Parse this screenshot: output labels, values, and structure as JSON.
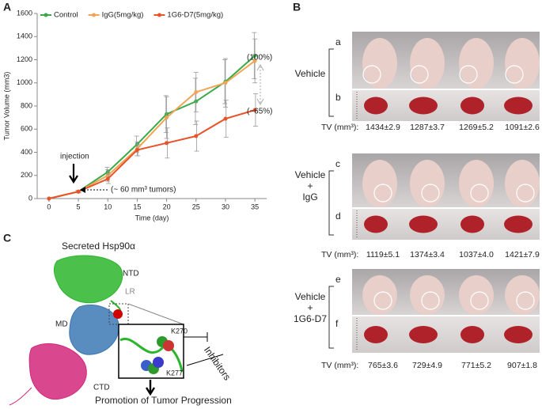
{
  "chart_data": {
    "type": "line",
    "panel_label": "A",
    "x_label": "Time (day)",
    "y_label": "Tumor Volume (mm3)",
    "x": [
      0,
      5,
      10,
      15,
      20,
      25,
      30,
      35
    ],
    "xlim": [
      -2,
      37
    ],
    "xticks": [
      0,
      5,
      10,
      15,
      20,
      25,
      30,
      35
    ],
    "ylim": [
      0,
      1600
    ],
    "yticks": [
      0,
      200,
      400,
      600,
      800,
      1000,
      1200,
      1400,
      1600
    ],
    "legend": "top-left",
    "series": [
      {
        "name": "Control",
        "color": "#3aaa48",
        "values": [
          0,
          60,
          230,
          470,
          730,
          840,
          1010,
          1235
        ],
        "errors": [
          0,
          10,
          40,
          70,
          160,
          200,
          190,
          200
        ]
      },
      {
        "name": "IgG(5mg/kg)",
        "color": "#f0a556",
        "values": [
          0,
          60,
          200,
          430,
          700,
          920,
          1000,
          1190
        ],
        "errors": [
          0,
          10,
          50,
          60,
          180,
          170,
          210,
          190
        ]
      },
      {
        "name": "1G6-D7(5mg/kg)",
        "color": "#e8532a",
        "values": [
          0,
          60,
          170,
          420,
          480,
          540,
          690,
          765
        ],
        "errors": [
          0,
          10,
          40,
          50,
          130,
          130,
          160,
          140
        ]
      }
    ],
    "annotations": [
      "injection",
      "(~ 60 mm³ tumors)",
      "(100%)",
      "(~65%)"
    ]
  },
  "panel_b": {
    "label": "B",
    "groups": [
      {
        "label_lines": [
          "Vehicle"
        ],
        "rows": [
          "a",
          "b"
        ],
        "tv_prefix": "TV (mm³):",
        "tv": [
          "1434±2.9",
          "1287±3.7",
          "1269±5.2",
          "1091±2.6"
        ]
      },
      {
        "label_lines": [
          "Vehicle",
          "+",
          "IgG"
        ],
        "rows": [
          "c",
          "d"
        ],
        "tv_prefix": "TV (mm³):",
        "tv": [
          "1119±5.1",
          "1374±3.4",
          "1037±4.0",
          "1421±7.9"
        ]
      },
      {
        "label_lines": [
          "Vehicle",
          "+",
          "1G6-D7"
        ],
        "rows": [
          "e",
          "f"
        ],
        "tv_prefix": "TV (mm³):",
        "tv": [
          "765±3.6",
          "729±4.9",
          "771±5.2",
          "907±1.8"
        ]
      }
    ]
  },
  "panel_c": {
    "label": "C",
    "title": "Secreted Hsp90α",
    "domains": [
      "NTD",
      "LR",
      "MD",
      "CTD"
    ],
    "residues": [
      "K270",
      "K277"
    ],
    "inhibitors": "Inhibitors",
    "outcome": "Promotion of Tumor Progression"
  }
}
